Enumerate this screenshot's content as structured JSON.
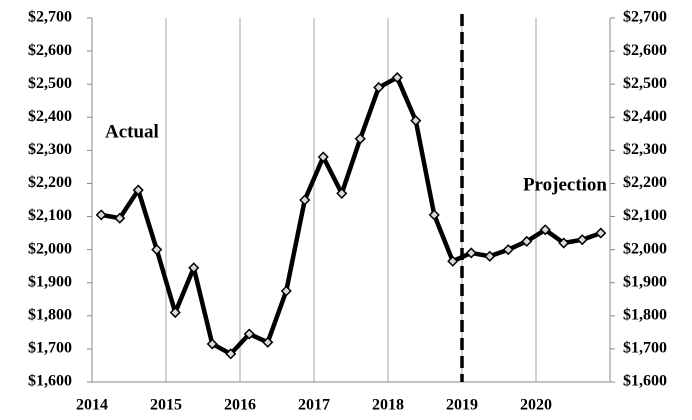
{
  "chart_data": {
    "type": "line",
    "x": [
      2014.125,
      2014.375,
      2014.625,
      2014.875,
      2015.125,
      2015.375,
      2015.625,
      2015.875,
      2016.125,
      2016.375,
      2016.625,
      2016.875,
      2017.125,
      2017.375,
      2017.625,
      2017.875,
      2018.125,
      2018.375,
      2018.625,
      2018.875,
      2019.125,
      2019.375,
      2019.625,
      2019.875,
      2020.125,
      2020.375,
      2020.625,
      2020.875
    ],
    "series": [
      {
        "color": "#000000",
        "values": [
          2105,
          2095,
          2180,
          2000,
          1810,
          1945,
          1715,
          1685,
          1745,
          1720,
          1875,
          2150,
          2280,
          2170,
          2335,
          2490,
          2520,
          2390,
          2105,
          1965,
          1990,
          1980,
          2000,
          2025,
          2060,
          2020,
          2030,
          2050
        ]
      }
    ],
    "xlim": [
      2014,
      2021
    ],
    "xticks": [
      2014,
      2015,
      2016,
      2017,
      2018,
      2019,
      2020
    ],
    "ylim": [
      1600,
      2700
    ],
    "yticks": [
      {
        "value": 1600,
        "label": "$1,600"
      },
      {
        "value": 1700,
        "label": "$1,700"
      },
      {
        "value": 1800,
        "label": "$1,800"
      },
      {
        "value": 1900,
        "label": "$1,900"
      },
      {
        "value": 2000,
        "label": "$2,000"
      },
      {
        "value": 2100,
        "label": "$2,100"
      },
      {
        "value": 2200,
        "label": "$2,200"
      },
      {
        "value": 2300,
        "label": "$2,300"
      },
      {
        "value": 2400,
        "label": "$2,400"
      },
      {
        "value": 2500,
        "label": "$2,500"
      },
      {
        "value": 2600,
        "label": "$2,600"
      },
      {
        "value": 2700,
        "label": "$2,700"
      }
    ],
    "y2lim": [
      1600,
      2700
    ],
    "y2ticks": [
      {
        "value": 1600,
        "label": "$1,600"
      },
      {
        "value": 1700,
        "label": "$1,700"
      },
      {
        "value": 1800,
        "label": "$1,800"
      },
      {
        "value": 1900,
        "label": "$1,900"
      },
      {
        "value": 2000,
        "label": "$2,000"
      },
      {
        "value": 2100,
        "label": "$2,100"
      },
      {
        "value": 2200,
        "label": "$2,200"
      },
      {
        "value": 2300,
        "label": "$2,300"
      },
      {
        "value": 2400,
        "label": "$2,400"
      },
      {
        "value": 2500,
        "label": "$2,500"
      },
      {
        "value": 2600,
        "label": "$2,600"
      },
      {
        "value": 2700,
        "label": "$2,700"
      }
    ],
    "vline": 2019,
    "annotations": [
      "Actual",
      "Projection"
    ],
    "grid": "x"
  }
}
